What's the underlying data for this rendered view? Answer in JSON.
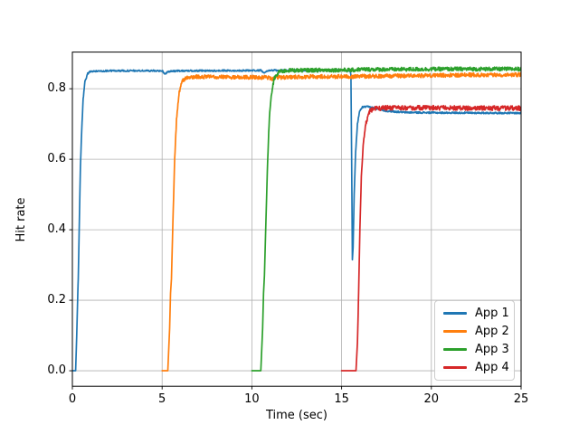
{
  "figure": {
    "background": "#ffffff",
    "grid_color": "#b0b0b0",
    "spine_color": "#000000"
  },
  "chart_data": {
    "type": "line",
    "title": "",
    "xlabel": "Time (sec)",
    "ylabel": "Hit rate",
    "xlim": [
      0,
      25
    ],
    "ylim": [
      -0.044,
      0.904
    ],
    "grid": true,
    "legend_position": "lower right",
    "xticks": [
      0,
      5,
      10,
      15,
      20,
      25
    ],
    "xtick_labels": [
      "0",
      "5",
      "10",
      "15",
      "20",
      "25"
    ],
    "yticks": [
      0.0,
      0.2,
      0.4,
      0.6,
      0.8
    ],
    "ytick_labels": [
      "0.0",
      "0.2",
      "0.4",
      "0.6",
      "0.8"
    ],
    "series": [
      {
        "name": "App 1",
        "color": "#1f77b4",
        "noise": 0.0022,
        "points": [
          [
            0,
            0
          ],
          [
            0.18,
            0
          ],
          [
            0.24,
            0.1
          ],
          [
            0.3,
            0.22
          ],
          [
            0.33,
            0.26
          ],
          [
            0.4,
            0.45
          ],
          [
            0.45,
            0.58
          ],
          [
            0.52,
            0.68
          ],
          [
            0.6,
            0.77
          ],
          [
            0.7,
            0.82
          ],
          [
            0.85,
            0.843
          ],
          [
            1.0,
            0.849
          ],
          [
            2,
            0.851
          ],
          [
            4,
            0.851
          ],
          [
            5.0,
            0.851
          ],
          [
            5.15,
            0.842
          ],
          [
            5.35,
            0.849
          ],
          [
            6,
            0.851
          ],
          [
            8,
            0.851
          ],
          [
            10.5,
            0.852
          ],
          [
            10.7,
            0.846
          ],
          [
            10.9,
            0.852
          ],
          [
            12,
            0.852
          ],
          [
            14,
            0.852
          ],
          [
            15.45,
            0.852
          ],
          [
            15.52,
            0.84
          ],
          [
            15.56,
            0.6
          ],
          [
            15.6,
            0.315
          ],
          [
            15.64,
            0.35
          ],
          [
            15.7,
            0.5
          ],
          [
            15.78,
            0.62
          ],
          [
            15.88,
            0.7
          ],
          [
            16.0,
            0.735
          ],
          [
            16.15,
            0.748
          ],
          [
            16.5,
            0.749
          ],
          [
            16.9,
            0.744
          ],
          [
            17.5,
            0.737
          ],
          [
            18.5,
            0.733
          ],
          [
            20,
            0.732
          ],
          [
            25,
            0.731
          ]
        ]
      },
      {
        "name": "App 2",
        "color": "#ff7f0e",
        "noise": 0.0055,
        "points": [
          [
            5,
            0
          ],
          [
            5.32,
            0
          ],
          [
            5.42,
            0.12
          ],
          [
            5.47,
            0.22
          ],
          [
            5.52,
            0.26
          ],
          [
            5.6,
            0.42
          ],
          [
            5.7,
            0.6
          ],
          [
            5.8,
            0.71
          ],
          [
            5.95,
            0.79
          ],
          [
            6.1,
            0.82
          ],
          [
            6.4,
            0.832
          ],
          [
            7,
            0.834
          ],
          [
            9,
            0.833
          ],
          [
            10.9,
            0.832
          ],
          [
            11.1,
            0.827
          ],
          [
            11.4,
            0.832
          ],
          [
            13,
            0.834
          ],
          [
            16,
            0.835
          ],
          [
            19,
            0.837
          ],
          [
            22,
            0.839
          ],
          [
            25,
            0.84
          ]
        ]
      },
      {
        "name": "App 3",
        "color": "#2ca02c",
        "noise": 0.0055,
        "points": [
          [
            10,
            0
          ],
          [
            10.5,
            0
          ],
          [
            10.6,
            0.12
          ],
          [
            10.65,
            0.22
          ],
          [
            10.7,
            0.27
          ],
          [
            10.78,
            0.42
          ],
          [
            10.88,
            0.6
          ],
          [
            10.98,
            0.72
          ],
          [
            11.1,
            0.79
          ],
          [
            11.25,
            0.83
          ],
          [
            11.5,
            0.848
          ],
          [
            12,
            0.852
          ],
          [
            14,
            0.853
          ],
          [
            15.7,
            0.853
          ],
          [
            16,
            0.855
          ],
          [
            18,
            0.855
          ],
          [
            21,
            0.856
          ],
          [
            25,
            0.856
          ]
        ]
      },
      {
        "name": "App 4",
        "color": "#d62728",
        "noise": 0.0065,
        "points": [
          [
            15,
            0
          ],
          [
            15.8,
            0
          ],
          [
            15.88,
            0.08
          ],
          [
            15.95,
            0.22
          ],
          [
            16.02,
            0.4
          ],
          [
            16.1,
            0.55
          ],
          [
            16.2,
            0.64
          ],
          [
            16.35,
            0.7
          ],
          [
            16.55,
            0.735
          ],
          [
            16.75,
            0.743
          ],
          [
            17.5,
            0.746
          ],
          [
            20,
            0.746
          ],
          [
            23,
            0.745
          ],
          [
            25,
            0.745
          ]
        ]
      }
    ]
  }
}
